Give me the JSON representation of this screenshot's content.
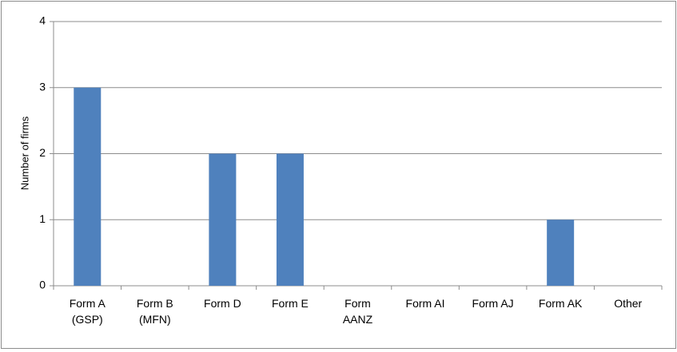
{
  "chart_data": {
    "type": "bar",
    "y_label": "Number of firms",
    "categories": [
      "Form A (GSP)",
      "Form B (MFN)",
      "Form D",
      "Form E",
      "Form AANZ",
      "Form AI",
      "Form AJ",
      "Form AK",
      "Other"
    ],
    "values": [
      3,
      0,
      2,
      2,
      0,
      0,
      0,
      1,
      0
    ],
    "color": "#4f81bd",
    "ylim": [
      0,
      4
    ],
    "yticks": [
      0,
      1,
      2,
      3,
      4
    ],
    "grid": true
  }
}
